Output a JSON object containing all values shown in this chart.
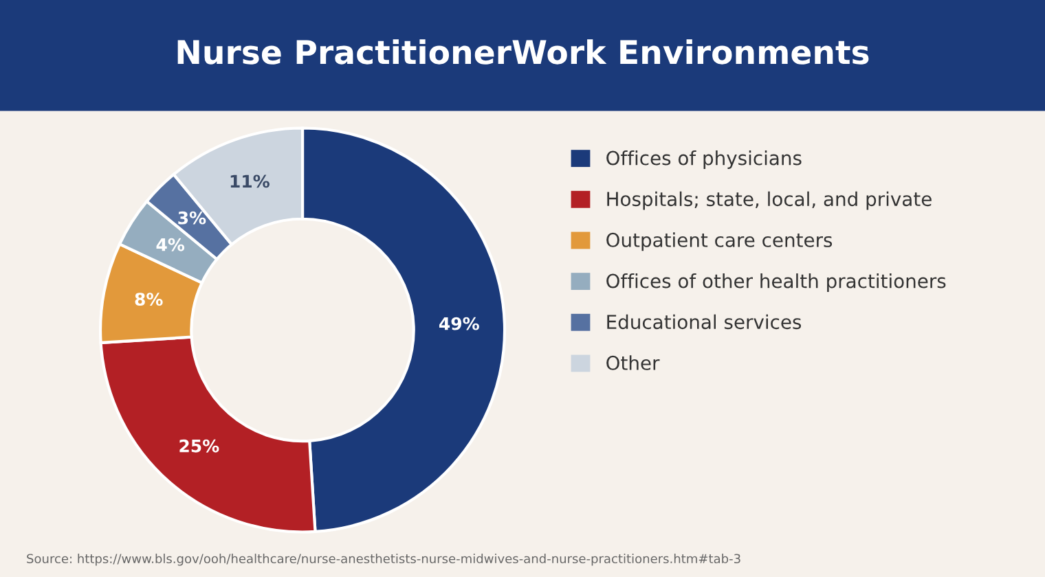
{
  "chart_data": {
    "type": "donut",
    "title": "Nurse PractitionerWork Environments",
    "categories": [
      "Offices of physicians",
      "Hospitals; state, local, and private",
      "Outpatient care centers",
      "Offices of other health practitioners",
      "Educational services",
      "Other"
    ],
    "values": [
      49,
      25,
      8,
      4,
      3,
      11
    ],
    "colors": [
      "#1b3a7a",
      "#b32025",
      "#e2993b",
      "#95adbf",
      "#5671a1",
      "#ccd5df"
    ],
    "value_labels": [
      "49%",
      "25%",
      "8%",
      "4%",
      "3%",
      "11%"
    ],
    "legend": "right",
    "annotations": [
      "Source: https://www.bls.gov/ooh/healthcare/nurse-anesthetists-nurse-midwives-and-nurse-practitioners.htm#tab-3"
    ]
  }
}
